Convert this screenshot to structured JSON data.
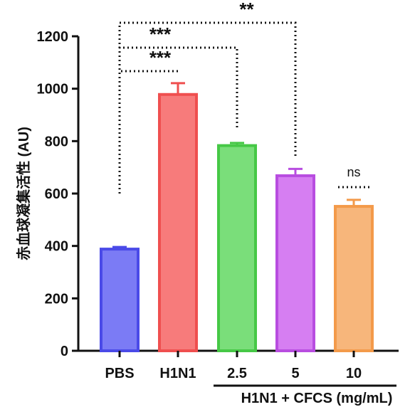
{
  "chart_data": {
    "type": "bar",
    "ylabel": "赤血球凝集活性 (AU)",
    "ylim": [
      0,
      1200
    ],
    "yticks": [
      0,
      200,
      400,
      600,
      800,
      1000,
      1200
    ],
    "categories": [
      "PBS",
      "H1N1",
      "2.5",
      "5",
      "10"
    ],
    "group_label": "H1N1 + CFCS (mg/mL)",
    "values": [
      388,
      978,
      783,
      668,
      551
    ],
    "errors": [
      8,
      43,
      10,
      26,
      25
    ],
    "bar_fill_colors": [
      "#7b7bf5",
      "#f77b7b",
      "#7ade7a",
      "#d67ef2",
      "#f7b67b"
    ],
    "bar_edge_colors": [
      "#4a4ae8",
      "#ef4f4f",
      "#46c846",
      "#b84de0",
      "#f39a4a"
    ],
    "significance": [
      {
        "from": "PBS",
        "to": "H1N1",
        "label": "***"
      },
      {
        "from": "PBS",
        "to": "2.5",
        "label": "***"
      },
      {
        "from": "PBS",
        "to": "5",
        "label": "**"
      },
      {
        "at": "10",
        "label": "ns"
      }
    ],
    "grid": false,
    "legend": "none"
  }
}
